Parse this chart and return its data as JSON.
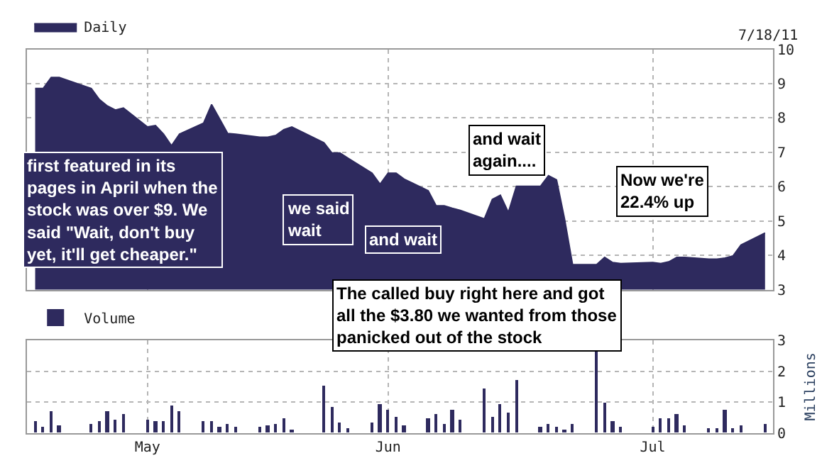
{
  "chart_data": [
    {
      "type": "area",
      "legend": "top left",
      "grid": true,
      "marker": "none",
      "tick_labels": "y",
      "x": [
        "--04-18",
        "--04-19",
        "--04-20",
        "--04-21",
        "--04-25",
        "--04-26",
        "--04-27",
        "--04-28",
        "--04-29",
        "--05-02",
        "--05-03",
        "--05-04",
        "--05-05",
        "--05-06",
        "--05-09",
        "--05-10",
        "--05-11",
        "--05-12",
        "--05-13",
        "--05-16",
        "--05-17",
        "--05-18",
        "--05-19",
        "--05-20",
        "--05-24",
        "--05-25",
        "--05-26",
        "--05-27",
        "--05-30",
        "--05-31",
        "--06-01",
        "--06-02",
        "--06-03",
        "--06-06",
        "--06-07",
        "--06-08",
        "--06-09",
        "--06-10",
        "--06-13",
        "--06-14",
        "--06-15",
        "--06-16",
        "--06-17",
        "--06-20",
        "--06-21",
        "--06-22",
        "--06-23",
        "--06-24",
        "--06-27",
        "--06-28",
        "--06-29",
        "--06-30",
        "--07-04",
        "--07-05",
        "--07-06",
        "--07-07",
        "--07-08",
        "--07-11",
        "--07-12",
        "--07-13",
        "--07-14",
        "--07-15",
        "--07-18"
      ],
      "series": [
        {
          "name": "Daily",
          "color": "#2e2a5e",
          "values": [
            8.86,
            8.86,
            9.18,
            9.18,
            8.86,
            8.54,
            8.35,
            8.23,
            8.29,
            7.74,
            7.78,
            7.53,
            7.19,
            7.53,
            7.85,
            8.39,
            7.97,
            7.55,
            7.53,
            7.44,
            7.44,
            7.49,
            7.66,
            7.74,
            7.28,
            6.98,
            6.98,
            6.83,
            6.39,
            6.07,
            6.39,
            6.39,
            6.22,
            5.88,
            5.44,
            5.44,
            5.37,
            5.31,
            5.06,
            5.63,
            5.75,
            5.25,
            6.01,
            6.01,
            6.32,
            6.2,
            5.06,
            3.73,
            3.73,
            3.94,
            3.79,
            3.76,
            3.79,
            3.76,
            3.81,
            3.94,
            3.94,
            3.89,
            3.89,
            3.92,
            3.98,
            4.3,
            4.65
          ]
        }
      ],
      "xlim": [
        "--04-17",
        "--07-19"
      ],
      "xticks": [
        {
          "value": "--05-02",
          "label": null
        },
        {
          "value": "--06-01",
          "label": null
        },
        {
          "value": "--07-04",
          "label": null
        }
      ],
      "ylim": [
        3,
        10
      ],
      "yticks": [
        3,
        4,
        5,
        6,
        7,
        8,
        9,
        10
      ],
      "annotations": [
        "7/18/11",
        "first featured in its pages in April when the stock was over $9. We said \"Wait, don't buy yet, it'll get cheaper.\"",
        "we said wait",
        "and wait",
        "and wait again....",
        "Now we're 22.4% up",
        "The called buy right here and got all the $3.80 we wanted from those panicked out of the stock"
      ]
    },
    {
      "type": "bar",
      "legend": "top left",
      "grid": true,
      "ylabel": "Millions",
      "x": [
        "--04-18",
        "--04-19",
        "--04-20",
        "--04-21",
        "--04-25",
        "--04-26",
        "--04-27",
        "--04-28",
        "--04-29",
        "--05-02",
        "--05-03",
        "--05-04",
        "--05-05",
        "--05-06",
        "--05-09",
        "--05-10",
        "--05-11",
        "--05-12",
        "--05-13",
        "--05-16",
        "--05-17",
        "--05-18",
        "--05-19",
        "--05-20",
        "--05-24",
        "--05-25",
        "--05-26",
        "--05-27",
        "--05-30",
        "--05-31",
        "--06-01",
        "--06-02",
        "--06-03",
        "--06-06",
        "--06-07",
        "--06-08",
        "--06-09",
        "--06-10",
        "--06-13",
        "--06-14",
        "--06-15",
        "--06-16",
        "--06-17",
        "--06-20",
        "--06-21",
        "--06-22",
        "--06-23",
        "--06-24",
        "--06-27",
        "--06-28",
        "--06-29",
        "--06-30",
        "--07-04",
        "--07-05",
        "--07-06",
        "--07-07",
        "--07-08",
        "--07-11",
        "--07-12",
        "--07-13",
        "--07-14",
        "--07-15",
        "--07-18"
      ],
      "series": [
        {
          "name": "Volume",
          "color": "#2e2a5e",
          "values": [
            0.4,
            0.19,
            0.69,
            0.23,
            0.27,
            0.37,
            0.69,
            0.42,
            0.62,
            0.42,
            0.37,
            0.37,
            0.88,
            0.69,
            0.37,
            0.37,
            0.19,
            0.27,
            0.19,
            0.19,
            0.23,
            0.3,
            0.46,
            0.12,
            1.55,
            0.85,
            0.33,
            0.16,
            0.33,
            0.94,
            0.76,
            0.53,
            0.23,
            0.49,
            0.62,
            0.27,
            0.76,
            0.42,
            1.44,
            0.53,
            0.94,
            0.66,
            1.7,
            0.19,
            0.3,
            0.19,
            0.12,
            0.3,
            2.68,
            0.96,
            0.37,
            0.19,
            0.19,
            0.49,
            0.46,
            0.62,
            0.23,
            0.16,
            0.16,
            0.76,
            0.16,
            0.23,
            0.3
          ]
        }
      ],
      "xlim": [
        "--04-17",
        "--07-19"
      ],
      "xticks": [
        {
          "value": "--05-02",
          "label": "May"
        },
        {
          "value": "--06-01",
          "label": "Jun"
        },
        {
          "value": "--07-04",
          "label": "Jul"
        }
      ],
      "ylim": [
        0,
        3
      ],
      "yticks": [
        0,
        1,
        2,
        3
      ]
    }
  ]
}
